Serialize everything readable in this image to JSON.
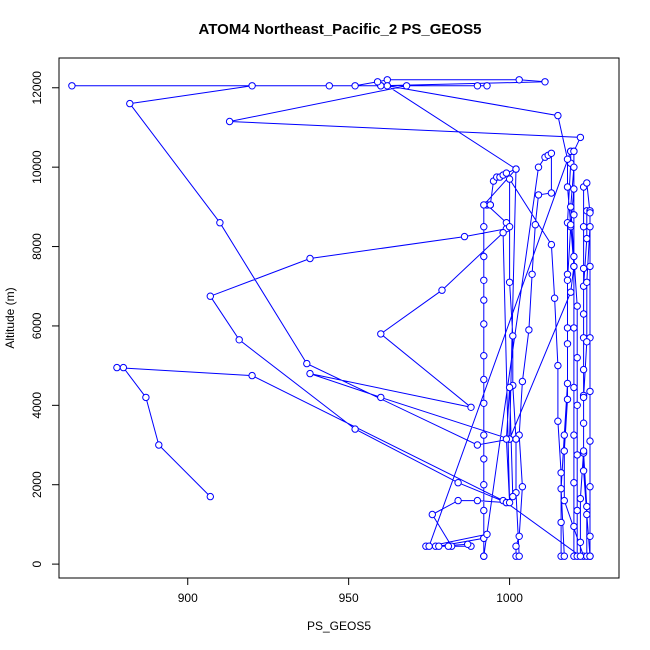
{
  "chart_data": {
    "type": "line",
    "title": "ATOM4 Northeast_Pacific_2 PS_GEOS5",
    "xlabel": "PS_GEOS5",
    "ylabel": "Altitude (m)",
    "xlim": [
      860,
      1034
    ],
    "ylim": [
      -350,
      12750
    ],
    "xticks": [
      900,
      950,
      1000
    ],
    "yticks": [
      0,
      2000,
      4000,
      6000,
      8000,
      10000,
      12000
    ],
    "grid": false,
    "legend": "none",
    "series": [
      {
        "color": "#0000ff",
        "marker": "open-circle",
        "points": [
          [
            907,
            1700
          ],
          [
            891,
            3000
          ],
          [
            887,
            4200
          ],
          [
            880,
            4950
          ],
          [
            878,
            4950
          ],
          [
            920,
            4750
          ],
          [
            998,
            1600
          ],
          [
            999,
            1550
          ],
          [
            984,
            2050
          ],
          [
            952,
            3400
          ],
          [
            916,
            5650
          ],
          [
            907,
            6750
          ],
          [
            938,
            7700
          ],
          [
            986,
            8250
          ],
          [
            999,
            8450
          ],
          [
            999,
            8600
          ],
          [
            993,
            9050
          ],
          [
            993,
            9050
          ],
          [
            994,
            9050
          ],
          [
            994,
            9050
          ],
          [
            995,
            9650
          ],
          [
            996,
            9750
          ],
          [
            997,
            9750
          ],
          [
            998,
            9800
          ],
          [
            999,
            9850
          ],
          [
            1002,
            9950
          ],
          [
            992,
            9050
          ],
          [
            992,
            8500
          ],
          [
            992,
            7750
          ],
          [
            992,
            7150
          ],
          [
            992,
            6650
          ],
          [
            992,
            6050
          ],
          [
            992,
            5250
          ],
          [
            992,
            4650
          ],
          [
            992,
            4050
          ],
          [
            992,
            3250
          ],
          [
            992,
            2650
          ],
          [
            992,
            2000
          ],
          [
            992,
            1350
          ],
          [
            992,
            650
          ],
          [
            992,
            200
          ],
          [
            992,
            200
          ],
          [
            1009,
            10000
          ],
          [
            1011,
            10250
          ],
          [
            1012,
            10300
          ],
          [
            1013,
            10350
          ],
          [
            1013,
            9350
          ],
          [
            1009,
            9300
          ],
          [
            1008,
            8550
          ],
          [
            1007,
            7300
          ],
          [
            1006,
            5900
          ],
          [
            1004,
            4600
          ],
          [
            1003,
            3250
          ],
          [
            1004,
            1950
          ],
          [
            1003,
            700
          ],
          [
            1002,
            450
          ],
          [
            1002,
            200
          ],
          [
            1003,
            200
          ],
          [
            1002,
            1800
          ],
          [
            1002,
            3150
          ],
          [
            1001,
            4500
          ],
          [
            1001,
            5750
          ],
          [
            1000,
            7100
          ],
          [
            1000,
            8500
          ],
          [
            1000,
            9700
          ],
          [
            1013,
            8050
          ],
          [
            1014,
            6700
          ],
          [
            1015,
            5000
          ],
          [
            1015,
            3600
          ],
          [
            1016,
            2300
          ],
          [
            1016,
            1050
          ],
          [
            1016,
            200
          ],
          [
            1017,
            200
          ],
          [
            1016,
            1900
          ],
          [
            1017,
            3250
          ],
          [
            1018,
            4550
          ],
          [
            1018,
            5950
          ],
          [
            1018,
            7300
          ],
          [
            1018,
            8600
          ],
          [
            1019,
            10100
          ],
          [
            1019,
            10400
          ],
          [
            1020,
            10400
          ],
          [
            1020,
            8800
          ],
          [
            1020,
            7500
          ],
          [
            1020,
            5950
          ],
          [
            1020,
            4450
          ],
          [
            1020,
            3250
          ],
          [
            1020,
            2050
          ],
          [
            1020,
            950
          ],
          [
            1020,
            200
          ],
          [
            1021,
            200
          ],
          [
            1021,
            1350
          ],
          [
            1021,
            2750
          ],
          [
            1021,
            4000
          ],
          [
            1021,
            5200
          ],
          [
            1021,
            6500
          ],
          [
            1020,
            7750
          ],
          [
            1019,
            9000
          ],
          [
            1020,
            10000
          ],
          [
            1020,
            9450
          ],
          [
            1019,
            8500
          ],
          [
            1018,
            7150
          ],
          [
            1018,
            5550
          ],
          [
            1018,
            4150
          ],
          [
            1017,
            2850
          ],
          [
            1017,
            1600
          ],
          [
            1023,
            200
          ],
          [
            1024,
            200
          ],
          [
            1024,
            1450
          ],
          [
            1023,
            2800
          ],
          [
            1023,
            4250
          ],
          [
            1023,
            5700
          ],
          [
            1023,
            7000
          ],
          [
            1024,
            8200
          ],
          [
            1024,
            8900
          ],
          [
            1025,
            8900
          ],
          [
            1025,
            7500
          ],
          [
            1025,
            5700
          ],
          [
            1025,
            4350
          ],
          [
            1025,
            3100
          ],
          [
            1025,
            1950
          ],
          [
            1025,
            700
          ],
          [
            1025,
            200
          ],
          [
            1025,
            200
          ],
          [
            1024,
            1250
          ],
          [
            1023,
            2350
          ],
          [
            1023,
            3550
          ],
          [
            1023,
            4900
          ],
          [
            1023,
            6300
          ],
          [
            1023,
            7450
          ],
          [
            1023,
            8500
          ],
          [
            1023,
            9500
          ],
          [
            1024,
            9600
          ],
          [
            1025,
            8850
          ],
          [
            1025,
            8500
          ],
          [
            1024,
            7100
          ],
          [
            1024,
            5600
          ],
          [
            1023,
            4200
          ],
          [
            1023,
            2850
          ],
          [
            1022,
            1650
          ],
          [
            1022,
            550
          ],
          [
            1022,
            200
          ],
          [
            999,
            1550
          ],
          [
            990,
            1600
          ],
          [
            984,
            1600
          ],
          [
            976,
            1250
          ],
          [
            982,
            450
          ],
          [
            981,
            450
          ],
          [
            977,
            450
          ],
          [
            974,
            450
          ],
          [
            988,
            450
          ],
          [
            987,
            500
          ],
          [
            978,
            450
          ],
          [
            992,
            650
          ],
          [
            993,
            750
          ],
          [
            975,
            450
          ],
          [
            1019,
            10400
          ],
          [
            1020,
            10400
          ],
          [
            1022,
            10750
          ],
          [
            913,
            11150
          ],
          [
            968,
            12050
          ],
          [
            944,
            12050
          ],
          [
            990,
            12050
          ],
          [
            993,
            12050
          ],
          [
            960,
            12050
          ],
          [
            960,
            12050
          ],
          [
            1011,
            12150
          ],
          [
            1003,
            12200
          ],
          [
            962,
            12200
          ],
          [
            959,
            12150
          ],
          [
            952,
            12050
          ],
          [
            864,
            12050
          ],
          [
            920,
            12050
          ],
          [
            882,
            11600
          ],
          [
            910,
            8600
          ],
          [
            937,
            5050
          ],
          [
            990,
            3000
          ],
          [
            1000,
            3150
          ],
          [
            1002,
            9950
          ],
          [
            962,
            12050
          ],
          [
            1015,
            11300
          ],
          [
            1018,
            10200
          ],
          [
            1018,
            9500
          ],
          [
            1019,
            8550
          ],
          [
            1020,
            7500
          ],
          [
            1019,
            6850
          ],
          [
            1000,
            3150
          ],
          [
            960,
            4200
          ],
          [
            938,
            4800
          ],
          [
            988,
            3950
          ],
          [
            960,
            5800
          ],
          [
            979,
            6900
          ],
          [
            998,
            8350
          ],
          [
            1000,
            1550
          ],
          [
            999,
            3150
          ],
          [
            1000,
            4450
          ],
          [
            1001,
            1700
          ]
        ]
      }
    ]
  }
}
